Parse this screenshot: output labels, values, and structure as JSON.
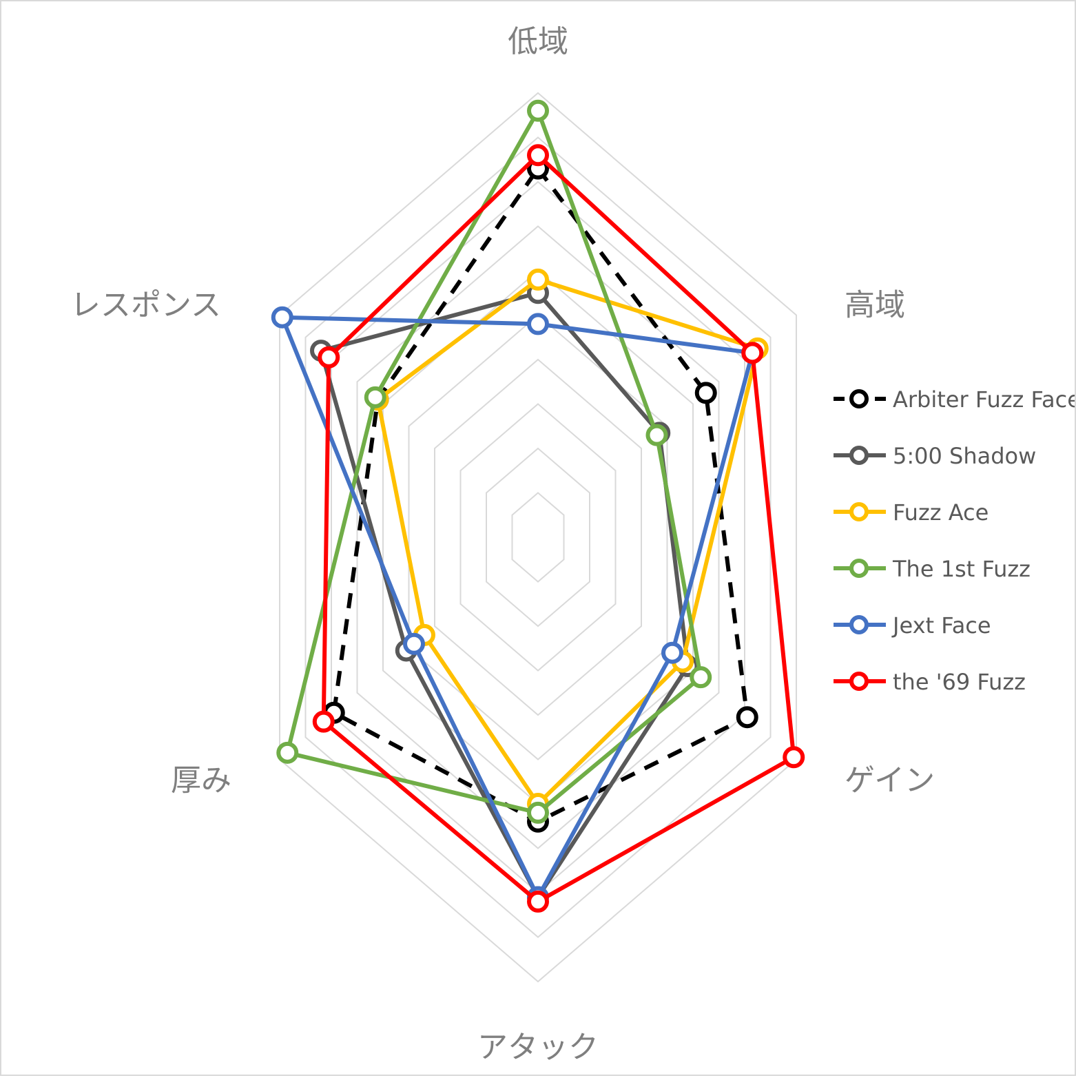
{
  "chart_data": {
    "type": "radar",
    "title": "",
    "axes": [
      "低域",
      "高域",
      "ゲイン",
      "アタック",
      "厚み",
      "レスポンス"
    ],
    "range": [
      0,
      10
    ],
    "rings": 10,
    "grid": true,
    "legend_position": "right",
    "series": [
      {
        "name": "Arbiter Fuzz Face",
        "color": "#000000",
        "dashed": true,
        "values": [
          8.3,
          6.5,
          8.1,
          6.4,
          7.9,
          6.2
        ]
      },
      {
        "name": "5:00 Shadow",
        "color": "#595959",
        "dashed": false,
        "values": [
          5.5,
          4.7,
          5.8,
          8.1,
          5.1,
          8.4
        ]
      },
      {
        "name": "Fuzz Ace",
        "color": "#FFC000",
        "dashed": false,
        "values": [
          5.8,
          8.5,
          5.6,
          6.0,
          4.4,
          6.2
        ]
      },
      {
        "name": "The 1st Fuzz",
        "color": "#70AD47",
        "dashed": false,
        "values": [
          9.6,
          4.6,
          6.3,
          6.2,
          9.7,
          6.3
        ]
      },
      {
        "name": "Jext Face",
        "color": "#4472C4",
        "dashed": false,
        "values": [
          4.8,
          8.3,
          5.2,
          8.1,
          4.8,
          9.9
        ]
      },
      {
        "name": "the '69 Fuzz",
        "color": "#FF0000",
        "dashed": false,
        "values": [
          8.6,
          8.3,
          9.9,
          8.2,
          8.3,
          8.1
        ]
      }
    ]
  }
}
